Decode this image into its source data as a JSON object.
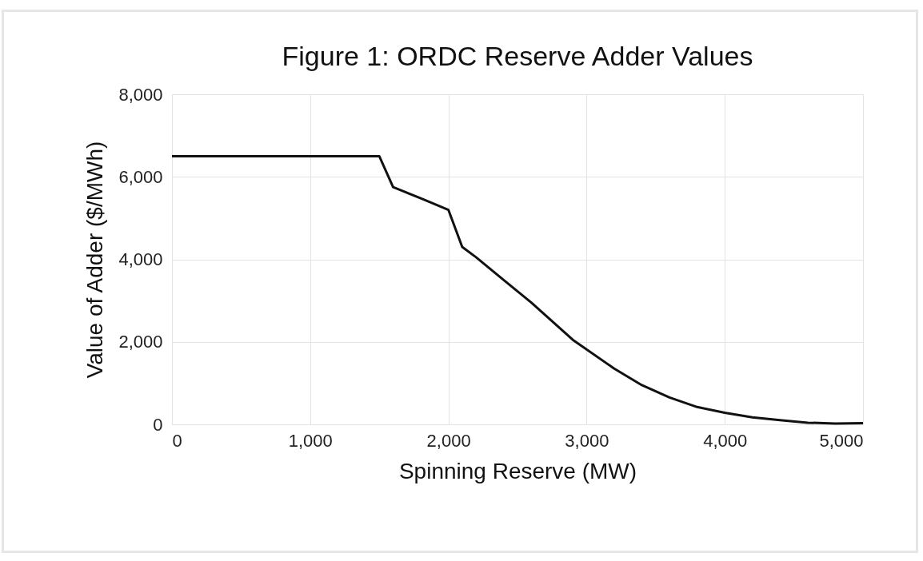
{
  "chart_data": {
    "type": "line",
    "title": "Figure 1: ORDC Reserve Adder Values",
    "xlabel": "Spinning Reserve (MW)",
    "ylabel": "Value of Adder ($/MWh)",
    "x": [
      0,
      1500,
      1600,
      1800,
      2000,
      2100,
      2200,
      2400,
      2600,
      2900,
      3200,
      3400,
      3600,
      3800,
      4000,
      4200,
      4400,
      4600,
      4800,
      5000
    ],
    "series": [
      {
        "color": "#111111",
        "values": [
          6500,
          6500,
          5750,
          5480,
          5200,
          4300,
          4050,
          3500,
          2950,
          2050,
          1350,
          950,
          650,
          420,
          280,
          170,
          100,
          40,
          20,
          30
        ]
      }
    ],
    "xlim": [
      0,
      5000
    ],
    "xticks": [
      {
        "value": 0,
        "label": "0"
      },
      {
        "value": 1000,
        "label": "1,000"
      },
      {
        "value": 2000,
        "label": "2,000"
      },
      {
        "value": 3000,
        "label": "3,000"
      },
      {
        "value": 4000,
        "label": "4,000"
      },
      {
        "value": 5000,
        "label": "5,000"
      }
    ],
    "ylim": [
      0,
      8000
    ],
    "yticks": [
      {
        "value": 0,
        "label": "0"
      },
      {
        "value": 2000,
        "label": "2,000"
      },
      {
        "value": 4000,
        "label": "4,000"
      },
      {
        "value": 6000,
        "label": "6,000"
      },
      {
        "value": 8000,
        "label": "8,000"
      }
    ],
    "grid": true,
    "marker": "none",
    "line_style": "solid"
  }
}
